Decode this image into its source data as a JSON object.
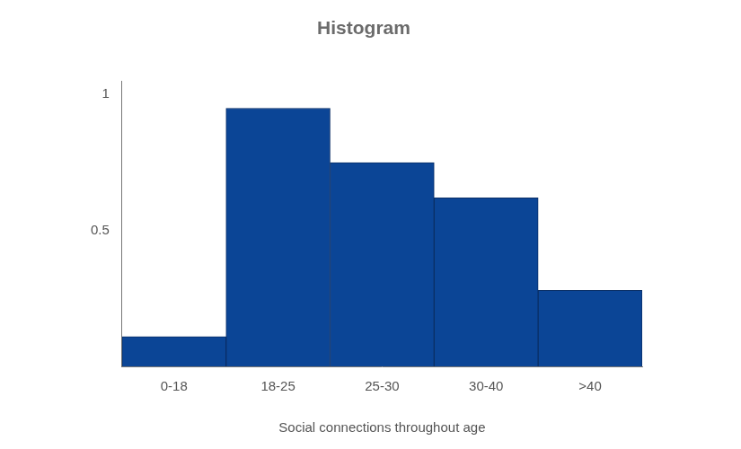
{
  "chart_data": {
    "type": "bar",
    "title": "Histogram",
    "x_label": "Social connections throughout age",
    "categories": [
      "0-18",
      "18-25",
      "25-30",
      "30-40",
      ">40"
    ],
    "values": [
      0.11,
      0.95,
      0.75,
      0.62,
      0.28
    ],
    "color": "#0b4596",
    "ylim": [
      0,
      1.05
    ],
    "yticks": [
      0.5,
      1
    ],
    "grid": false
  }
}
